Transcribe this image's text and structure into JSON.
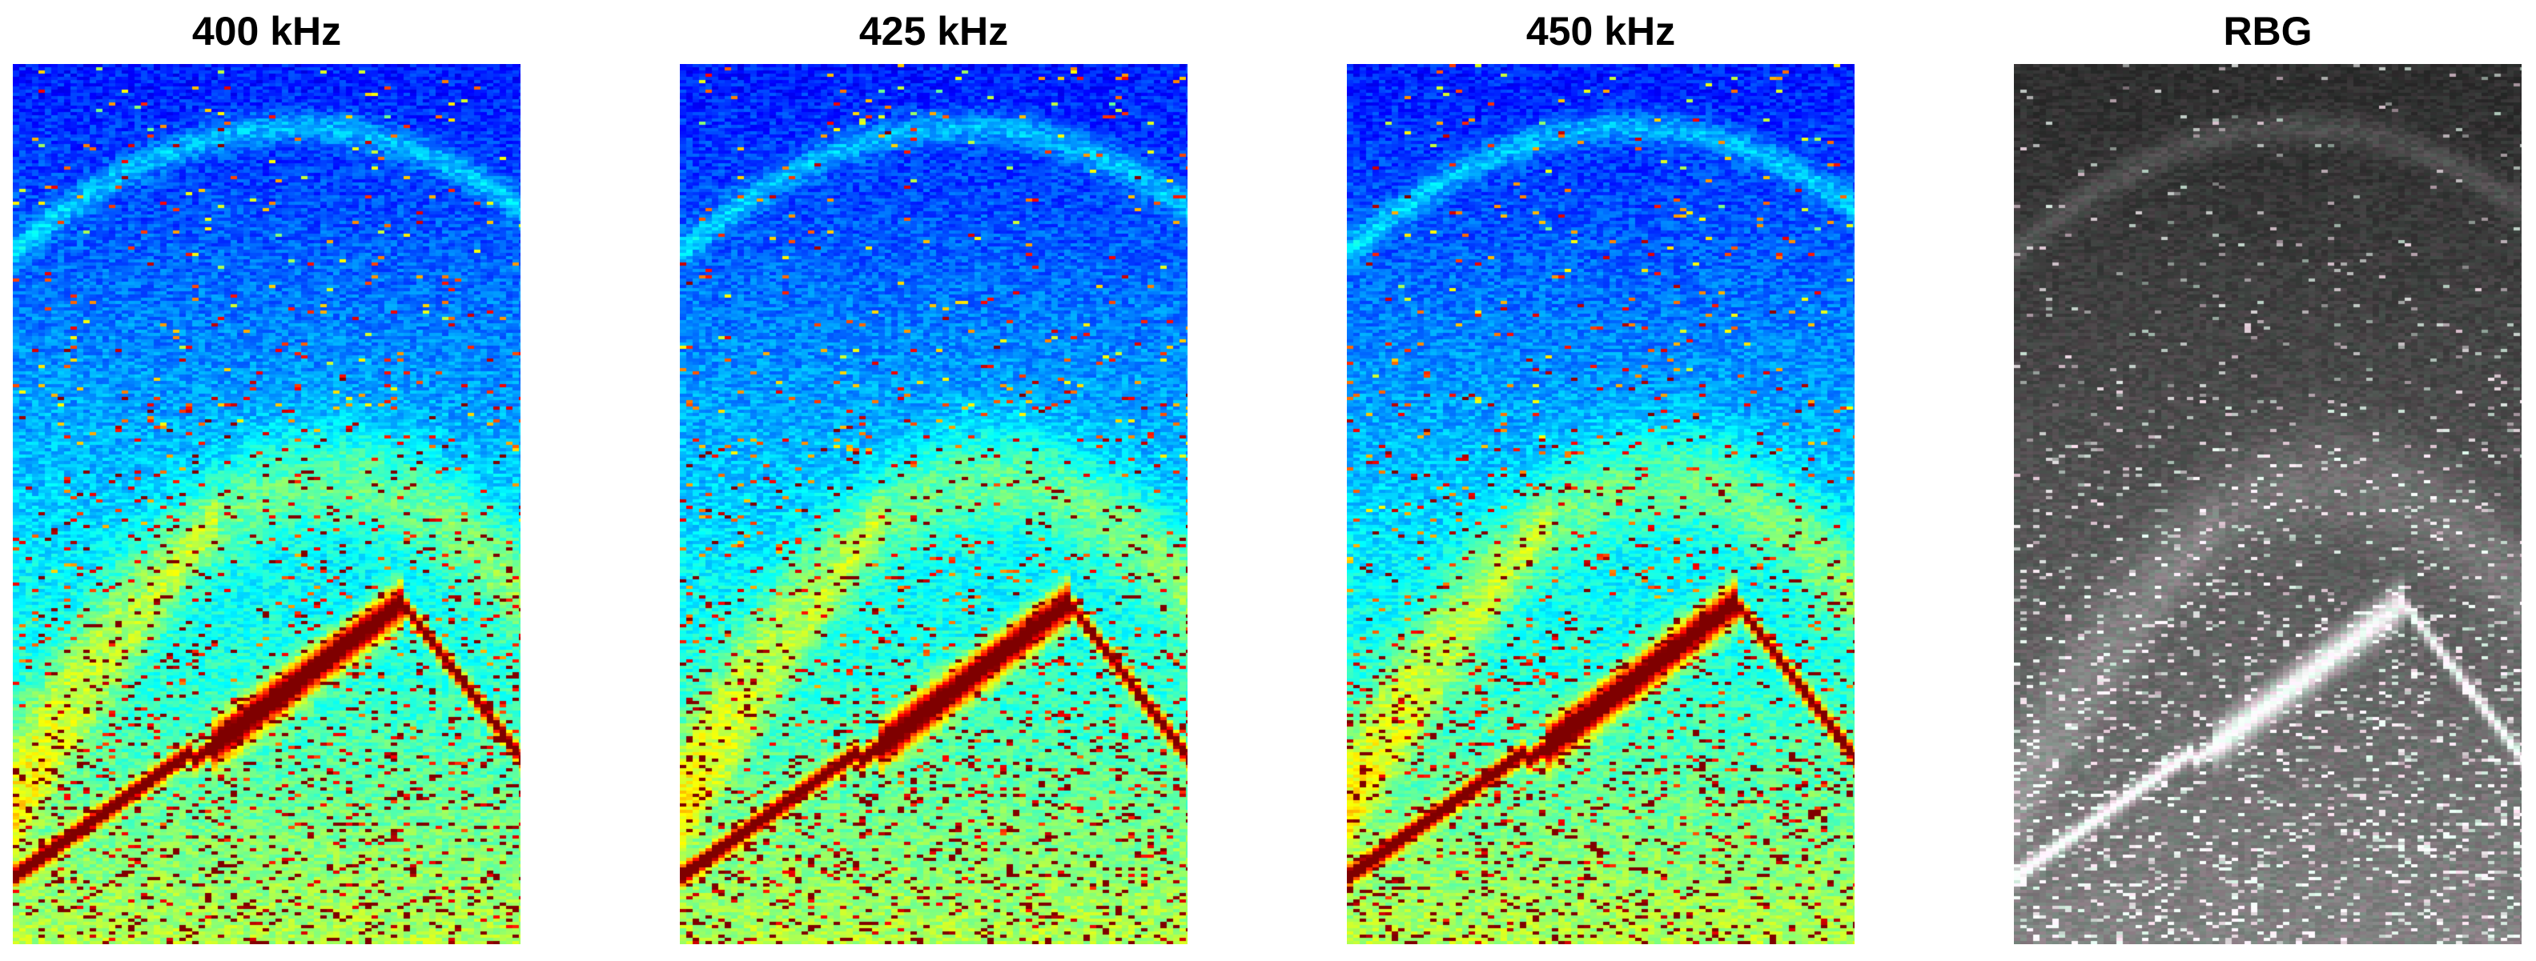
{
  "panels": [
    {
      "title": "400 kHz",
      "kind": "jet",
      "seed": 11
    },
    {
      "title": "425 kHz",
      "kind": "jet",
      "seed": 23
    },
    {
      "title": "450 kHz",
      "kind": "jet",
      "seed": 37
    },
    {
      "title": "RBG",
      "kind": "rgb",
      "seed": 51
    }
  ]
}
